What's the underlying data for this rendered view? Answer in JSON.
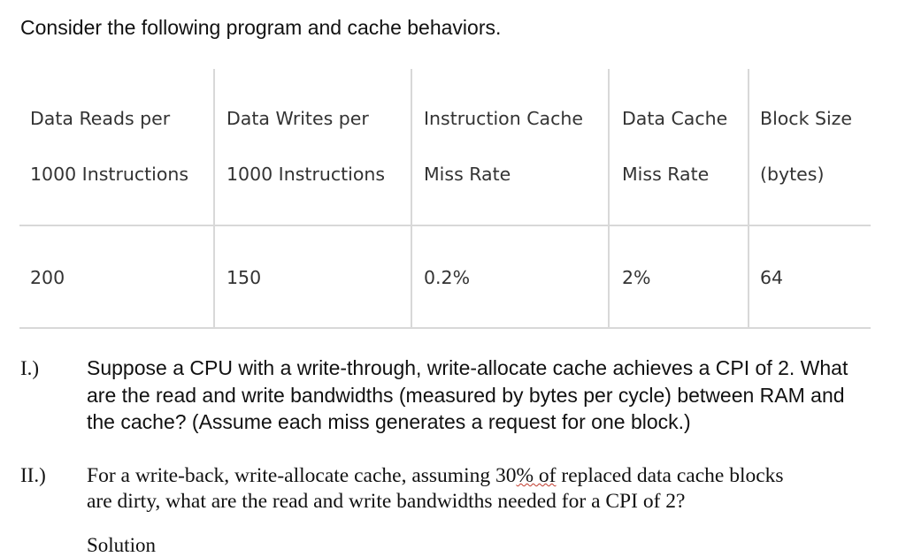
{
  "intro": "Consider the following program and cache behaviors.",
  "table": {
    "headers": [
      {
        "line1": "Data Reads per",
        "line2": "1000 Instructions"
      },
      {
        "line1": "Data Writes per",
        "line2": "1000 Instructions"
      },
      {
        "line1": "Instruction Cache",
        "line2": "Miss Rate"
      },
      {
        "line1": "Data Cache",
        "line2": "Miss Rate"
      },
      {
        "line1": "Block Size",
        "line2": "(bytes)"
      }
    ],
    "row": [
      "200",
      "150",
      "0.2%",
      "2%",
      "64"
    ]
  },
  "questions": [
    {
      "number": "I.)",
      "text": "Suppose a CPU with a write-through, write-allocate cache achieves a CPI of 2. What are the read and write bandwidths (measured by bytes per cycle) between RAM and the cache? (Assume each miss generates a request for one block.)"
    },
    {
      "number": "II.)",
      "line1_before": "For a write-back, write-allocate cache, assuming 30",
      "line1_underlined": "%  of",
      "line1_after": " replaced data cache blocks",
      "line2": "are dirty, what are the read and write bandwidths  needed for a CPI of 2?"
    }
  ],
  "trailing_text": "Solution"
}
